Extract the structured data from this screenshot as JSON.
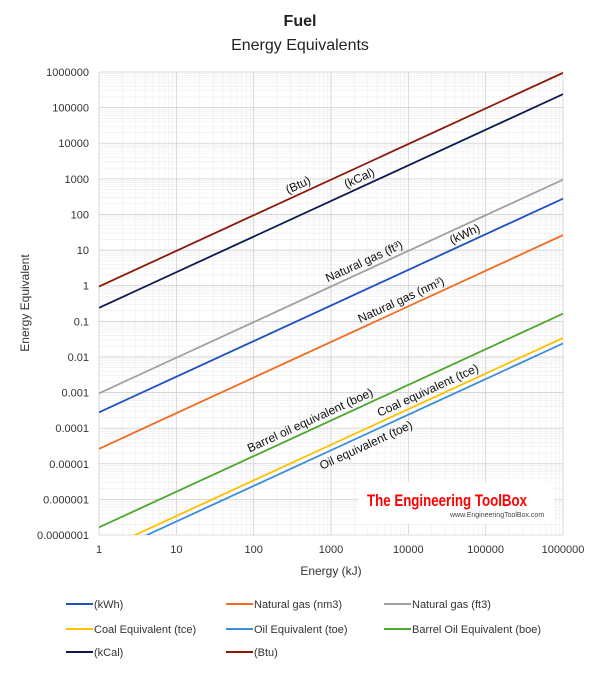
{
  "chart_data": {
    "type": "line",
    "title": "Fuel",
    "subtitle": "Energy Equivalents",
    "xlabel": "Energy (kJ)",
    "ylabel": "Energy Equivalent",
    "xscale": "log",
    "yscale": "log",
    "xlim": [
      1,
      1000000
    ],
    "ylim": [
      1e-07,
      1000000
    ],
    "grid": true,
    "legend_placement": "bottom",
    "x_ticks": [
      "1",
      "10",
      "100",
      "1000",
      "10000",
      "100000",
      "1000000"
    ],
    "y_ticks": [
      "0.0000001",
      "0.000001",
      "0.00001",
      "0.0001",
      "0.001",
      "0.01",
      "0.1",
      "1",
      "10",
      "100",
      "1000",
      "10000",
      "100000",
      "1000000"
    ],
    "x": [
      1,
      1000000
    ],
    "series": [
      {
        "name": "(kWh)",
        "color": "#1f4fc0",
        "factor": 0.000278,
        "annotation": "(kWh)",
        "annotation_x": 60000
      },
      {
        "name": "Natural gas (nm3)",
        "color": "#f26b21",
        "factor": 2.63e-05,
        "annotation": "Natural gas (nm³)",
        "annotation_x": 9000
      },
      {
        "name": "Natural gas (ft3)",
        "color": "#a0a0a0",
        "factor": 0.00095,
        "annotation": "Natural gas (ft³)",
        "annotation_x": 3000
      },
      {
        "name": "Coal Equivalent (tce)",
        "color": "#ffc000",
        "factor": 3.41e-08,
        "annotation": "Coal equivalent (tce)",
        "annotation_x": 20000
      },
      {
        "name": "Oil Equivalent (toe)",
        "color": "#3a8fdc",
        "factor": 2.39e-08,
        "annotation": "Oil equivalent (toe)",
        "annotation_x": 2500
      },
      {
        "name": "Barrel Oil Equivalent (boe)",
        "color": "#4ea72e",
        "factor": 1.64e-07,
        "annotation": "Barrel oil equivalent (boe)",
        "annotation_x": 600
      },
      {
        "name": "(kCal)",
        "color": "#0b1a4f",
        "factor": 0.239,
        "annotation": "(kCal)",
        "annotation_x": 2600
      },
      {
        "name": "(Btu)",
        "color": "#8b1a0a",
        "factor": 0.948,
        "annotation": "(Btu)",
        "annotation_x": 420
      }
    ]
  },
  "watermark": {
    "brand": "The Engineering ToolBox",
    "url": "www.EngineeringToolBox.com"
  }
}
